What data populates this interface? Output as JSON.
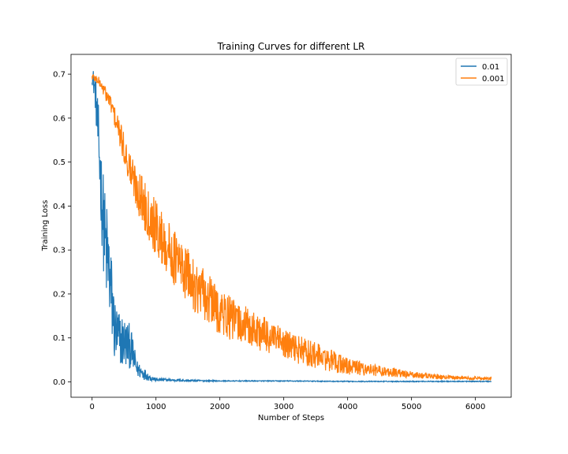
{
  "chart_data": {
    "type": "line",
    "title": "Training Curves for different LR",
    "xlabel": "Number of Steps",
    "ylabel": "Training Loss",
    "xlim": [
      -330,
      6560
    ],
    "ylim": [
      -0.035,
      0.745
    ],
    "xticks": [
      0,
      1000,
      2000,
      3000,
      4000,
      5000,
      6000
    ],
    "yticks": [
      0.0,
      0.1,
      0.2,
      0.3,
      0.4,
      0.5,
      0.6,
      0.7
    ],
    "xtick_labels": [
      "0",
      "1000",
      "2000",
      "3000",
      "4000",
      "5000",
      "6000"
    ],
    "ytick_labels": [
      "0.0",
      "0.1",
      "0.2",
      "0.3",
      "0.4",
      "0.5",
      "0.6",
      "0.7"
    ],
    "grid": false,
    "legend_position": "top-right",
    "series": [
      {
        "name": "0.01",
        "color": "#1f77b4",
        "x": [
          0,
          50,
          100,
          150,
          200,
          250,
          300,
          350,
          400,
          500,
          600,
          700,
          800,
          900,
          1000,
          1500,
          2000,
          3000,
          4000,
          5000,
          6250
        ],
        "y": [
          0.7,
          0.66,
          0.55,
          0.42,
          0.32,
          0.27,
          0.2,
          0.12,
          0.1,
          0.09,
          0.08,
          0.03,
          0.02,
          0.01,
          0.005,
          0.003,
          0.002,
          0.002,
          0.001,
          0.001,
          0.001
        ],
        "noise": [
          0.02,
          0.04,
          0.08,
          0.1,
          0.12,
          0.12,
          0.1,
          0.08,
          0.07,
          0.06,
          0.05,
          0.02,
          0.015,
          0.008,
          0.004,
          0.002,
          0.001,
          0.001,
          0.001,
          0.001,
          0.001
        ]
      },
      {
        "name": "0.001",
        "color": "#ff7f0e",
        "x": [
          0,
          100,
          200,
          300,
          400,
          500,
          600,
          700,
          800,
          900,
          1000,
          1200,
          1400,
          1600,
          1800,
          2000,
          2200,
          2500,
          2800,
          3000,
          3500,
          4000,
          4500,
          5000,
          5500,
          6250
        ],
        "y": [
          0.695,
          0.685,
          0.66,
          0.63,
          0.58,
          0.53,
          0.48,
          0.44,
          0.41,
          0.38,
          0.35,
          0.3,
          0.26,
          0.22,
          0.19,
          0.16,
          0.14,
          0.12,
          0.1,
          0.085,
          0.06,
          0.035,
          0.025,
          0.016,
          0.011,
          0.007
        ],
        "noise": [
          0.01,
          0.01,
          0.015,
          0.02,
          0.03,
          0.035,
          0.045,
          0.05,
          0.06,
          0.06,
          0.065,
          0.065,
          0.065,
          0.06,
          0.06,
          0.055,
          0.05,
          0.045,
          0.04,
          0.035,
          0.03,
          0.02,
          0.012,
          0.008,
          0.005,
          0.003
        ]
      }
    ]
  }
}
